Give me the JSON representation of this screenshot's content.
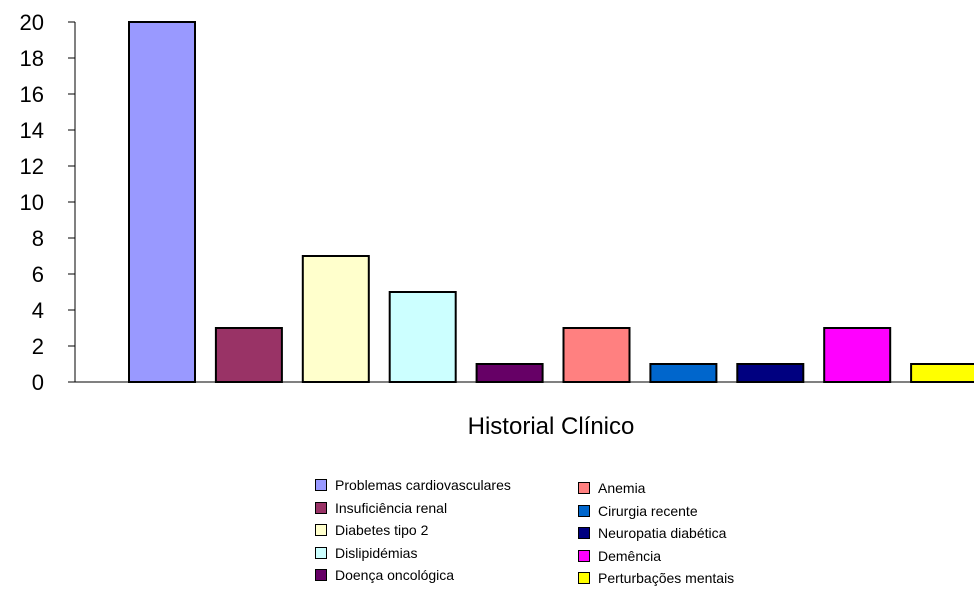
{
  "chart_data": {
    "type": "bar",
    "xlabel": "Historial Clínico",
    "ylim": [
      0,
      20
    ],
    "yticks": [
      0,
      2,
      4,
      6,
      8,
      10,
      12,
      14,
      16,
      18,
      20
    ],
    "grid": false,
    "legend_position": "bottom",
    "series": [
      {
        "name": "Problemas cardiovasculares",
        "value": 20,
        "color": "#9999ff"
      },
      {
        "name": "Insuficiência renal",
        "value": 3,
        "color": "#993366"
      },
      {
        "name": "Diabetes tipo 2",
        "value": 7,
        "color": "#ffffcc"
      },
      {
        "name": "Dislipidémias",
        "value": 5,
        "color": "#ccffff"
      },
      {
        "name": "Doença oncológica",
        "value": 1,
        "color": "#660066"
      },
      {
        "name": "Anemia",
        "value": 3,
        "color": "#ff8080"
      },
      {
        "name": "Cirurgia recente",
        "value": 1,
        "color": "#0066cc"
      },
      {
        "name": "Neuropatia diabética",
        "value": 1,
        "color": "#000080"
      },
      {
        "name": "Demência",
        "value": 3,
        "color": "#ff00ff"
      },
      {
        "name": "Perturbações mentais",
        "value": 1,
        "color": "#ffff00"
      }
    ]
  }
}
